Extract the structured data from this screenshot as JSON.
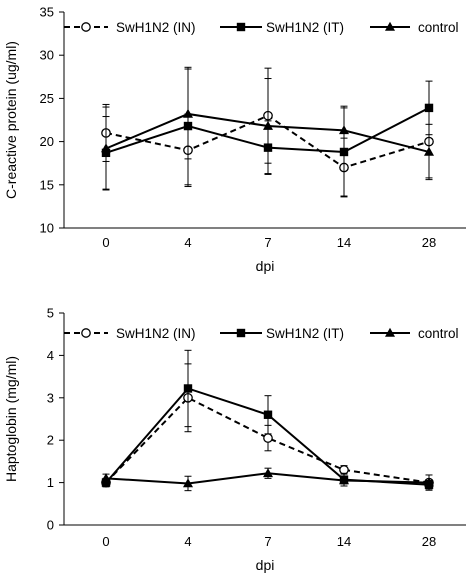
{
  "chart_data": [
    {
      "type": "line",
      "ylabel": "C-reactive protein (ug/ml)",
      "xlabel": "dpi",
      "categories": [
        "0",
        "4",
        "7",
        "14",
        "28"
      ],
      "ylim": [
        10,
        35
      ],
      "yticks": [
        10,
        15,
        20,
        25,
        30,
        35
      ],
      "grid": false,
      "legend_position": "top",
      "series": [
        {
          "name": "SwH1N2 (IN)",
          "values": [
            21.0,
            19.0,
            23.0,
            17.0,
            20.0
          ],
          "error": [
            3.3,
            4.2,
            5.5,
            3.4,
            4.2
          ],
          "line_style": "dashed",
          "marker": "open-circle"
        },
        {
          "name": "SwH1N2 (IT)",
          "values": [
            18.7,
            21.8,
            19.3,
            18.8,
            23.9
          ],
          "error": [
            4.2,
            6.8,
            3.1,
            5.1,
            3.1
          ],
          "line_style": "solid",
          "marker": "filled-square"
        },
        {
          "name": "control",
          "values": [
            19.2,
            23.2,
            21.8,
            21.3,
            18.8
          ],
          "error": [
            4.8,
            5.2,
            5.5,
            2.8,
            3.2
          ],
          "line_style": "solid",
          "marker": "filled-triangle"
        }
      ]
    },
    {
      "type": "line",
      "ylabel": "Haptoglobin (mg/ml)",
      "xlabel": "dpi",
      "categories": [
        "0",
        "4",
        "7",
        "14",
        "28"
      ],
      "ylim": [
        0,
        5
      ],
      "yticks": [
        0,
        1,
        2,
        3,
        4,
        5
      ],
      "grid": false,
      "legend_position": "top",
      "series": [
        {
          "name": "SwH1N2 (IN)",
          "values": [
            1.0,
            3.0,
            2.05,
            1.3,
            1.0
          ],
          "error": [
            0.08,
            0.8,
            0.3,
            0.1,
            0.07
          ],
          "line_style": "dashed",
          "marker": "open-circle"
        },
        {
          "name": "SwH1N2 (IT)",
          "values": [
            1.0,
            3.22,
            2.6,
            1.07,
            0.95
          ],
          "error": [
            0.1,
            0.9,
            0.45,
            0.15,
            0.1
          ],
          "line_style": "solid",
          "marker": "filled-square"
        },
        {
          "name": "control",
          "values": [
            1.1,
            0.98,
            1.22,
            1.05,
            1.0
          ],
          "error": [
            0.1,
            0.17,
            0.12,
            0.08,
            0.18
          ],
          "line_style": "solid",
          "marker": "filled-triangle"
        }
      ]
    }
  ]
}
